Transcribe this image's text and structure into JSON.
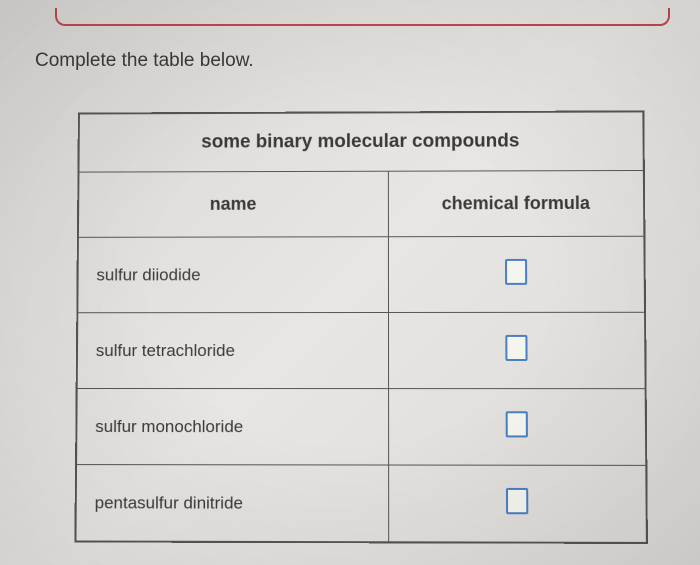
{
  "instruction": "Complete the table below.",
  "table": {
    "title": "some binary molecular compounds",
    "columns": [
      "name",
      "chemical formula"
    ],
    "rows": [
      {
        "name": "sulfur diiodide"
      },
      {
        "name": "sulfur tetrachloride"
      },
      {
        "name": "sulfur monochloride"
      },
      {
        "name": "pentasulfur dinitride"
      }
    ]
  },
  "colors": {
    "border_red": "#c04850",
    "table_border": "#555555",
    "input_border": "#4a7fc4",
    "text": "#3a3a3a",
    "background": "#e0ded9"
  }
}
